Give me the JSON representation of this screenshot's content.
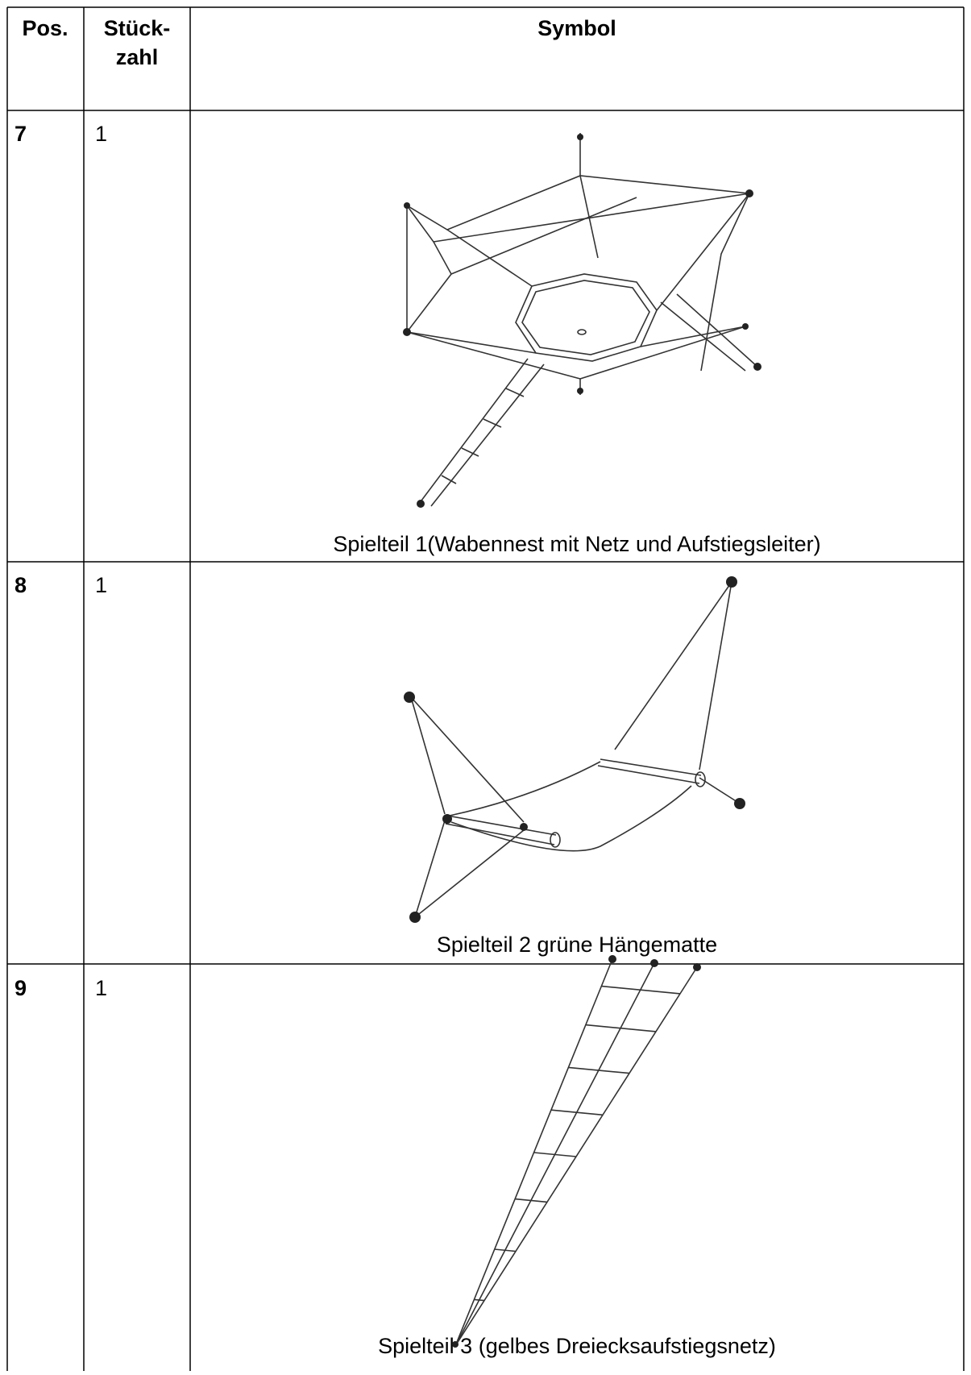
{
  "header": {
    "pos": "Pos.",
    "quantity": [
      "Stück-",
      "zahl"
    ],
    "symbol": "Symbol"
  },
  "rows": [
    {
      "pos": "7",
      "quantity": "1",
      "caption": "Spielteil 1(Wabennest mit Netz und Aufstiegsleiter)"
    },
    {
      "pos": "8",
      "quantity": "1",
      "caption": "Spielteil 2 grüne Hängematte"
    },
    {
      "pos": "9",
      "quantity": "1",
      "caption": "Spielteil 3 (gelbes Dreiecksaufstiegsnetz)"
    }
  ]
}
